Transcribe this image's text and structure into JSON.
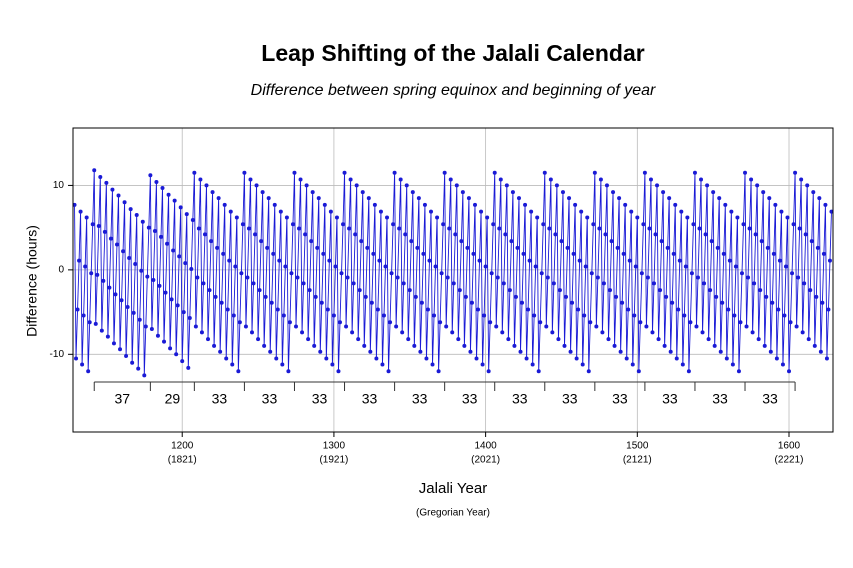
{
  "chart_data": {
    "type": "line",
    "title": "Leap Shifting of the Jalali Calendar",
    "subtitle": "Difference between spring equinox and beginning of year",
    "xlabel": "Jalali Year",
    "x2label": "(Gregorian Year)",
    "ylabel": "Difference (hours)",
    "color": "#1a1ad6",
    "grid": true,
    "xlim": [
      1128,
      1629
    ],
    "ylim": [
      -19.2,
      16.8
    ],
    "xticks": [
      1200,
      1300,
      1400,
      1500,
      1600
    ],
    "x2tick_labels": [
      "(1821)",
      "(1921)",
      "(2021)",
      "(2121)",
      "(2221)"
    ],
    "yticks": [
      -10,
      0,
      10
    ],
    "cycle_boundaries": [
      1142,
      1179,
      1208,
      1241,
      1274,
      1307,
      1340,
      1373,
      1406,
      1439,
      1472,
      1505,
      1538,
      1571,
      1604
    ],
    "cycle_lengths": [
      37,
      29,
      33,
      33,
      33,
      33,
      33,
      33,
      33,
      33,
      33,
      33,
      33,
      33
    ],
    "x": [
      1129,
      1130,
      1131,
      1132,
      1133,
      1134,
      1135,
      1136,
      1137,
      1138,
      1139,
      1140,
      1141,
      1142,
      1143,
      1144,
      1145,
      1146,
      1147,
      1148,
      1149,
      1150,
      1151,
      1152,
      1153,
      1154,
      1155,
      1156,
      1157,
      1158,
      1159,
      1160,
      1161,
      1162,
      1163,
      1164,
      1165,
      1166,
      1167,
      1168,
      1169,
      1170,
      1171,
      1172,
      1173,
      1174,
      1175,
      1176,
      1177,
      1178,
      1179,
      1180,
      1181,
      1182,
      1183,
      1184,
      1185,
      1186,
      1187,
      1188,
      1189,
      1190,
      1191,
      1192,
      1193,
      1194,
      1195,
      1196,
      1197,
      1198,
      1199,
      1200,
      1201,
      1202,
      1203,
      1204,
      1205,
      1206,
      1207,
      1208,
      1209,
      1210,
      1211,
      1212,
      1213,
      1214,
      1215,
      1216,
      1217,
      1218,
      1219,
      1220,
      1221,
      1222,
      1223,
      1224,
      1225,
      1226,
      1227,
      1228,
      1229,
      1230,
      1231,
      1232,
      1233,
      1234,
      1235,
      1236,
      1237,
      1238,
      1239,
      1240,
      1241,
      1242,
      1243,
      1244,
      1245,
      1246,
      1247,
      1248,
      1249,
      1250,
      1251,
      1252,
      1253,
      1254,
      1255,
      1256,
      1257,
      1258,
      1259,
      1260,
      1261,
      1262,
      1263,
      1264,
      1265,
      1266,
      1267,
      1268,
      1269,
      1270,
      1271,
      1272,
      1273,
      1274,
      1275,
      1276,
      1277,
      1278,
      1279,
      1280,
      1281,
      1282,
      1283,
      1284,
      1285,
      1286,
      1287,
      1288,
      1289,
      1290,
      1291,
      1292,
      1293,
      1294,
      1295,
      1296,
      1297,
      1298,
      1299,
      1300,
      1301,
      1302,
      1303,
      1304,
      1305,
      1306,
      1307,
      1308,
      1309,
      1310,
      1311,
      1312,
      1313,
      1314,
      1315,
      1316,
      1317,
      1318,
      1319,
      1320,
      1321,
      1322,
      1323,
      1324,
      1325,
      1326,
      1327,
      1328,
      1329,
      1330,
      1331,
      1332,
      1333,
      1334,
      1335,
      1336,
      1337,
      1338,
      1339,
      1340,
      1341,
      1342,
      1343,
      1344,
      1345,
      1346,
      1347,
      1348,
      1349,
      1350,
      1351,
      1352,
      1353,
      1354,
      1355,
      1356,
      1357,
      1358,
      1359,
      1360,
      1361,
      1362,
      1363,
      1364,
      1365,
      1366,
      1367,
      1368,
      1369,
      1370,
      1371,
      1372,
      1373,
      1374,
      1375,
      1376,
      1377,
      1378,
      1379,
      1380,
      1381,
      1382,
      1383,
      1384,
      1385,
      1386,
      1387,
      1388,
      1389,
      1390,
      1391,
      1392,
      1393,
      1394,
      1395,
      1396,
      1397,
      1398,
      1399,
      1400,
      1401,
      1402,
      1403,
      1404,
      1405,
      1406,
      1407,
      1408,
      1409,
      1410,
      1411,
      1412,
      1413,
      1414,
      1415,
      1416,
      1417,
      1418,
      1419,
      1420,
      1421,
      1422,
      1423,
      1424,
      1425,
      1426,
      1427,
      1428,
      1429,
      1430,
      1431,
      1432,
      1433,
      1434,
      1435,
      1436,
      1437,
      1438,
      1439,
      1440,
      1441,
      1442,
      1443,
      1444,
      1445,
      1446,
      1447,
      1448,
      1449,
      1450,
      1451,
      1452,
      1453,
      1454,
      1455,
      1456,
      1457,
      1458,
      1459,
      1460,
      1461,
      1462,
      1463,
      1464,
      1465,
      1466,
      1467,
      1468,
      1469,
      1470,
      1471,
      1472,
      1473,
      1474,
      1475,
      1476,
      1477,
      1478,
      1479,
      1480,
      1481,
      1482,
      1483,
      1484,
      1485,
      1486,
      1487,
      1488,
      1489,
      1490,
      1491,
      1492,
      1493,
      1494,
      1495,
      1496,
      1497,
      1498,
      1499,
      1500,
      1501,
      1502,
      1503,
      1504,
      1505,
      1506,
      1507,
      1508,
      1509,
      1510,
      1511,
      1512,
      1513,
      1514,
      1515,
      1516,
      1517,
      1518,
      1519,
      1520,
      1521,
      1522,
      1523,
      1524,
      1525,
      1526,
      1527,
      1528,
      1529,
      1530,
      1531,
      1532,
      1533,
      1534,
      1535,
      1536,
      1537,
      1538,
      1539,
      1540,
      1541,
      1542,
      1543,
      1544,
      1545,
      1546,
      1547,
      1548,
      1549,
      1550,
      1551,
      1552,
      1553,
      1554,
      1555,
      1556,
      1557,
      1558,
      1559,
      1560,
      1561,
      1562,
      1563,
      1564,
      1565,
      1566,
      1567,
      1568,
      1569,
      1570,
      1571,
      1572,
      1573,
      1574,
      1575,
      1576,
      1577,
      1578,
      1579,
      1580,
      1581,
      1582,
      1583,
      1584,
      1585,
      1586,
      1587,
      1588,
      1589,
      1590,
      1591,
      1592,
      1593,
      1594,
      1595,
      1596,
      1597,
      1598,
      1599,
      1600,
      1601,
      1602,
      1603,
      1604,
      1605,
      1606,
      1607,
      1608,
      1609,
      1610,
      1611,
      1612,
      1613,
      1614,
      1615,
      1616,
      1617,
      1618,
      1619,
      1620,
      1621,
      1622,
      1623,
      1624,
      1625,
      1626,
      1627,
      1628
    ],
    "values": [
      7.7,
      -10.5,
      -4.7,
      1.1,
      6.9,
      -11.2,
      -5.4,
      0.4,
      6.2,
      -12.0,
      -6.2,
      -0.4,
      5.4,
      11.8,
      -6.4,
      -0.6,
      5.2,
      11.0,
      -7.2,
      -1.3,
      4.5,
      10.3,
      -7.9,
      -2.1,
      3.7,
      9.5,
      -8.7,
      -2.9,
      3.0,
      8.8,
      -9.4,
      -3.6,
      2.2,
      8.0,
      -10.2,
      -4.4,
      1.4,
      7.2,
      -11.0,
      -5.1,
      0.7,
      6.5,
      -11.7,
      -5.9,
      -0.1,
      5.7,
      -12.5,
      -6.7,
      -0.8,
      5.0,
      11.2,
      -7.0,
      -1.2,
      4.6,
      10.4,
      -7.8,
      -1.9,
      3.9,
      9.7,
      -8.5,
      -2.7,
      3.1,
      8.9,
      -9.3,
      -3.5,
      2.3,
      8.2,
      -10.0,
      -4.2,
      1.6,
      7.4,
      -10.8,
      -5.0,
      0.8,
      6.6,
      -11.6,
      -5.7,
      0.1,
      5.9,
      11.5,
      -6.7,
      -0.9,
      4.9,
      10.7,
      -7.4,
      -1.6,
      4.2,
      10,
      -8.2,
      -2.4,
      3.4,
      9.2,
      -9.0,
      -3.2,
      2.6,
      8.5,
      -9.7,
      -3.9,
      1.9,
      7.7,
      -10.5,
      -4.7,
      1.1,
      6.9,
      -11.2,
      -5.4,
      0.4,
      6.2,
      -12.0,
      -6.2,
      -0.4,
      5.4,
      11.5,
      -6.7,
      -0.9,
      4.9,
      10.7,
      -7.4,
      -1.6,
      4.2,
      10,
      -8.2,
      -2.4,
      3.4,
      9.2,
      -9.0,
      -3.2,
      2.6,
      8.5,
      -9.7,
      -3.9,
      1.9,
      7.7,
      -10.5,
      -4.7,
      1.1,
      6.9,
      -11.2,
      -5.4,
      0.4,
      6.2,
      -12.0,
      -6.2,
      -0.4,
      5.4,
      11.5,
      -6.7,
      -0.9,
      4.9,
      10.7,
      -7.4,
      -1.6,
      4.2,
      10,
      -8.2,
      -2.4,
      3.4,
      9.2,
      -9.0,
      -3.2,
      2.6,
      8.5,
      -9.7,
      -3.9,
      1.9,
      7.7,
      -10.5,
      -4.7,
      1.1,
      6.9,
      -11.2,
      -5.4,
      0.4,
      6.2,
      -12.0,
      -6.2,
      -0.4,
      5.4,
      11.5,
      -6.7,
      -0.9,
      4.9,
      10.7,
      -7.4,
      -1.6,
      4.2,
      10,
      -8.2,
      -2.4,
      3.4,
      9.2,
      -9.0,
      -3.2,
      2.6,
      8.5,
      -9.7,
      -3.9,
      1.9,
      7.7,
      -10.5,
      -4.7,
      1.1,
      6.9,
      -11.2,
      -5.4,
      0.4,
      6.2,
      -12.0,
      -6.2,
      -0.4,
      5.4,
      11.5,
      -6.7,
      -0.9,
      4.9,
      10.7,
      -7.4,
      -1.6,
      4.2,
      10,
      -8.2,
      -2.4,
      3.4,
      9.2,
      -9.0,
      -3.2,
      2.6,
      8.5,
      -9.7,
      -3.9,
      1.9,
      7.7,
      -10.5,
      -4.7,
      1.1,
      6.9,
      -11.2,
      -5.4,
      0.4,
      6.2,
      -12.0,
      -6.2,
      -0.4,
      5.4,
      11.5,
      -6.7,
      -0.9,
      4.9,
      10.7,
      -7.4,
      -1.6,
      4.2,
      10,
      -8.2,
      -2.4,
      3.4,
      9.2,
      -9.0,
      -3.2,
      2.6,
      8.5,
      -9.7,
      -3.9,
      1.9,
      7.7,
      -10.5,
      -4.7,
      1.1,
      6.9,
      -11.2,
      -5.4,
      0.4,
      6.2,
      -12.0,
      -6.2,
      -0.4,
      5.4,
      11.5,
      -6.7,
      -0.9,
      4.9,
      10.7,
      -7.4,
      -1.6,
      4.2,
      10,
      -8.2,
      -2.4,
      3.4,
      9.2,
      -9.0,
      -3.2,
      2.6,
      8.5,
      -9.7,
      -3.9,
      1.9,
      7.7,
      -10.5,
      -4.7,
      1.1,
      6.9,
      -11.2,
      -5.4,
      0.4,
      6.2,
      -12.0,
      -6.2,
      -0.4,
      5.4,
      11.5,
      -6.7,
      -0.9,
      4.9,
      10.7,
      -7.4,
      -1.6,
      4.2,
      10,
      -8.2,
      -2.4,
      3.4,
      9.2,
      -9.0,
      -3.2,
      2.6,
      8.5,
      -9.7,
      -3.9,
      1.9,
      7.7,
      -10.5,
      -4.7,
      1.1,
      6.9,
      -11.2,
      -5.4,
      0.4,
      6.2,
      -12.0,
      -6.2,
      -0.4,
      5.4,
      11.5,
      -6.7,
      -0.9,
      4.9,
      10.7,
      -7.4,
      -1.6,
      4.2,
      10,
      -8.2,
      -2.4,
      3.4,
      9.2,
      -9.0,
      -3.2,
      2.6,
      8.5,
      -9.7,
      -3.9,
      1.9,
      7.7,
      -10.5,
      -4.7,
      1.1,
      6.9,
      -11.2,
      -5.4,
      0.4,
      6.2,
      -12.0,
      -6.2,
      -0.4,
      5.4,
      11.5,
      -6.7,
      -0.9,
      4.9,
      10.7,
      -7.4,
      -1.6,
      4.2,
      10,
      -8.2,
      -2.4,
      3.4,
      9.2,
      -9.0,
      -3.2,
      2.6,
      8.5,
      -9.7,
      -3.9,
      1.9,
      7.7,
      -10.5,
      -4.7,
      1.1,
      6.9,
      -11.2,
      -5.4,
      0.4,
      6.2,
      -12.0,
      -6.2,
      -0.4,
      5.4,
      11.5,
      -6.7,
      -0.9,
      4.9,
      10.7,
      -7.4,
      -1.6,
      4.2,
      10,
      -8.2,
      -2.4,
      3.4,
      9.2,
      -9.0,
      -3.2,
      2.6,
      8.5,
      -9.7,
      -3.9,
      1.9,
      7.7,
      -10.5,
      -4.7,
      1.1,
      6.9,
      -11.2,
      -5.4,
      0.4,
      6.2,
      -12.0,
      -6.2,
      -0.4,
      5.4,
      11.5,
      -6.7,
      -0.9,
      4.9,
      10.7,
      -7.4,
      -1.6,
      4.2,
      10,
      -8.2,
      -2.4,
      3.4,
      9.2,
      -9.0,
      -3.2,
      2.6,
      8.5,
      -9.7,
      -3.9,
      1.9,
      7.7,
      -10.5,
      -4.7,
      1.1,
      6.9,
      -11.2,
      -5.4,
      0.4,
      6.2,
      -12.0,
      -6.2,
      -0.4,
      5.4,
      11.5,
      -6.7,
      -0.9,
      4.9,
      10.7,
      -7.4,
      -1.6,
      4.2,
      10,
      -8.2,
      -2.4,
      3.4,
      9.2,
      -9.0,
      -3.2,
      2.6,
      8.5,
      -9.7,
      -3.9,
      1.9,
      7.7,
      -10.5,
      -4.7,
      1.1,
      6.9
    ]
  }
}
